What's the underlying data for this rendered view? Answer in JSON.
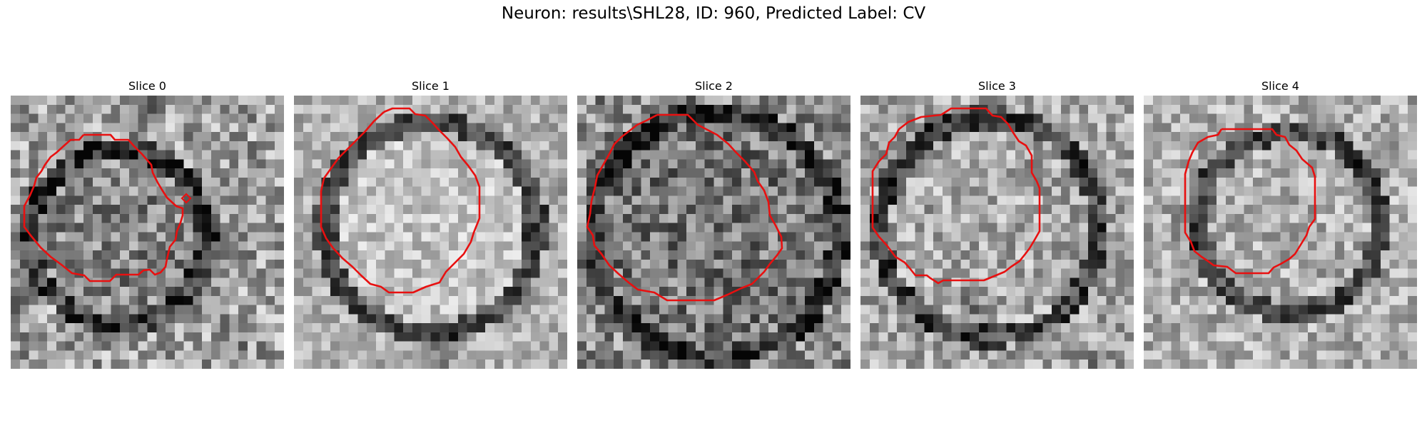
{
  "figure": {
    "title": "Neuron: results\\SHL28, ID: 960, Predicted Label: CV"
  },
  "slices": [
    {
      "title": "Slice 0"
    },
    {
      "title": "Slice 1"
    },
    {
      "title": "Slice 2"
    },
    {
      "title": "Slice 3"
    },
    {
      "title": "Slice 4"
    }
  ],
  "colors": {
    "contour": "#e81010",
    "background": "#ffffff"
  }
}
